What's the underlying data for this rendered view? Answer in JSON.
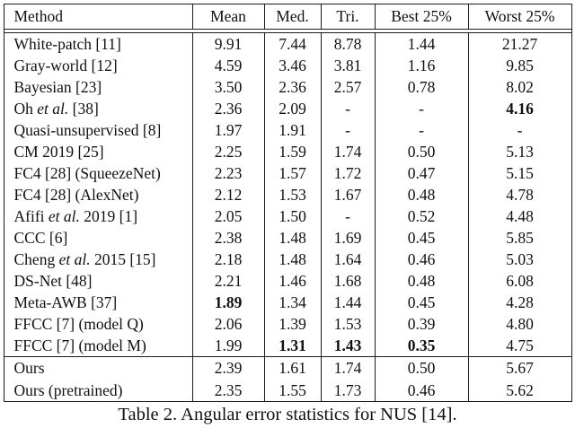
{
  "colors": {
    "background": "#ffffff",
    "text": "#111111",
    "line": "#1c1c1c"
  },
  "table": {
    "columns": [
      "Method",
      "Mean",
      "Med.",
      "Tri.",
      "Best 25%",
      "Worst 25%"
    ],
    "caption": "Table 2. Angular error statistics for NUS [14].",
    "groups": [
      {
        "rows": [
          {
            "method": "White-patch [11]",
            "values": [
              "9.91",
              "7.44",
              "8.78",
              "1.44",
              "21.27"
            ],
            "bold": []
          },
          {
            "method": "Gray-world [12]",
            "values": [
              "4.59",
              "3.46",
              "3.81",
              "1.16",
              "9.85"
            ],
            "bold": []
          },
          {
            "method": "Bayesian [23]",
            "values": [
              "3.50",
              "2.36",
              "2.57",
              "0.78",
              "8.02"
            ],
            "bold": []
          },
          {
            "method": "Oh et al. [38]",
            "values": [
              "2.36",
              "2.09",
              "-",
              "-",
              "4.16"
            ],
            "bold": [
              4
            ]
          },
          {
            "method": "Quasi-unsupervised [8]",
            "values": [
              "1.97",
              "1.91",
              "-",
              "-",
              "-"
            ],
            "bold": []
          },
          {
            "method": "CM 2019 [25]",
            "values": [
              "2.25",
              "1.59",
              "1.74",
              "0.50",
              "5.13"
            ],
            "bold": []
          },
          {
            "method": "FC4 [28] (SqueezeNet)",
            "values": [
              "2.23",
              "1.57",
              "1.72",
              "0.47",
              "5.15"
            ],
            "bold": []
          },
          {
            "method": "FC4 [28] (AlexNet)",
            "values": [
              "2.12",
              "1.53",
              "1.67",
              "0.48",
              "4.78"
            ],
            "bold": []
          },
          {
            "method": "Afifi et al. 2019 [1]",
            "values": [
              "2.05",
              "1.50",
              "-",
              "0.52",
              "4.48"
            ],
            "bold": []
          },
          {
            "method": "CCC [6]",
            "values": [
              "2.38",
              "1.48",
              "1.69",
              "0.45",
              "5.85"
            ],
            "bold": []
          },
          {
            "method": "Cheng et al. 2015 [15]",
            "values": [
              "2.18",
              "1.48",
              "1.64",
              "0.46",
              "5.03"
            ],
            "bold": []
          },
          {
            "method": "DS-Net [48]",
            "values": [
              "2.21",
              "1.46",
              "1.68",
              "0.48",
              "6.08"
            ],
            "bold": []
          },
          {
            "method": "Meta-AWB [37]",
            "values": [
              "1.89",
              "1.34",
              "1.44",
              "0.45",
              "4.28"
            ],
            "bold": [
              0
            ]
          },
          {
            "method": "FFCC [7] (model Q)",
            "values": [
              "2.06",
              "1.39",
              "1.53",
              "0.39",
              "4.80"
            ],
            "bold": []
          },
          {
            "method": "FFCC [7] (model M)",
            "values": [
              "1.99",
              "1.31",
              "1.43",
              "0.35",
              "4.75"
            ],
            "bold": [
              1,
              2,
              3
            ]
          }
        ]
      },
      {
        "rows": [
          {
            "method": "Ours",
            "values": [
              "2.39",
              "1.61",
              "1.74",
              "0.50",
              "5.67"
            ],
            "bold": []
          },
          {
            "method": "Ours (pretrained)",
            "values": [
              "2.35",
              "1.55",
              "1.73",
              "0.46",
              "5.62"
            ],
            "bold": []
          }
        ]
      }
    ]
  }
}
